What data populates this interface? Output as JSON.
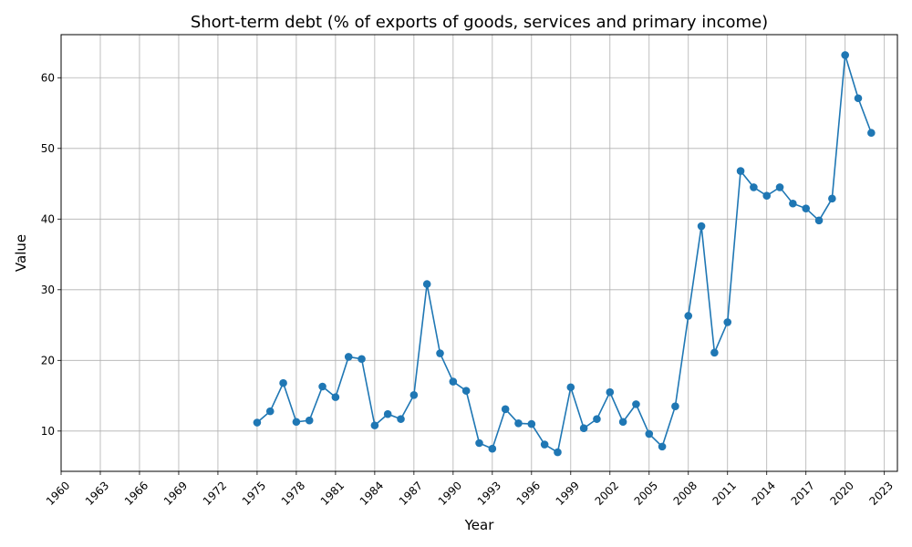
{
  "colors": {
    "series": "#1f77b4",
    "grid": "#b0b0b0",
    "axis": "#000000"
  },
  "chart_data": {
    "type": "line",
    "title": "Short-term debt (% of exports of goods, services and primary income)",
    "xlabel": "Year",
    "ylabel": "Value",
    "xlim": [
      1960,
      2024
    ],
    "ylim": [
      4.3,
      66.1
    ],
    "xticks": [
      1960,
      1963,
      1966,
      1969,
      1972,
      1975,
      1978,
      1981,
      1984,
      1987,
      1990,
      1993,
      1996,
      1999,
      2002,
      2005,
      2008,
      2011,
      2014,
      2017,
      2020,
      2023
    ],
    "yticks": [
      10,
      20,
      30,
      40,
      50,
      60
    ],
    "grid": true,
    "marker": "circle",
    "series": [
      {
        "x": [
          1975,
          1976,
          1977,
          1978,
          1979,
          1980,
          1981,
          1982,
          1983,
          1984,
          1985,
          1986,
          1987,
          1988,
          1989,
          1990,
          1991,
          1992,
          1993,
          1994,
          1995,
          1996,
          1997,
          1998,
          1999,
          2000,
          2001,
          2002,
          2003,
          2004,
          2005,
          2006,
          2007,
          2008,
          2009,
          2010,
          2011,
          2012,
          2013,
          2014,
          2015,
          2016,
          2017,
          2018,
          2019,
          2020,
          2021,
          2022
        ],
        "values": [
          11.2,
          12.8,
          16.8,
          11.3,
          11.5,
          16.3,
          14.8,
          20.5,
          20.2,
          10.8,
          12.4,
          11.7,
          15.1,
          30.8,
          21.0,
          17.0,
          15.7,
          8.3,
          7.5,
          13.1,
          11.1,
          11.0,
          8.1,
          7.0,
          16.2,
          10.4,
          11.7,
          15.5,
          11.3,
          13.8,
          9.6,
          7.8,
          13.5,
          26.3,
          39.0,
          21.1,
          25.4,
          46.8,
          44.5,
          43.3,
          44.5,
          42.2,
          41.5,
          39.8,
          42.9,
          63.2,
          57.1,
          52.2
        ]
      }
    ]
  }
}
